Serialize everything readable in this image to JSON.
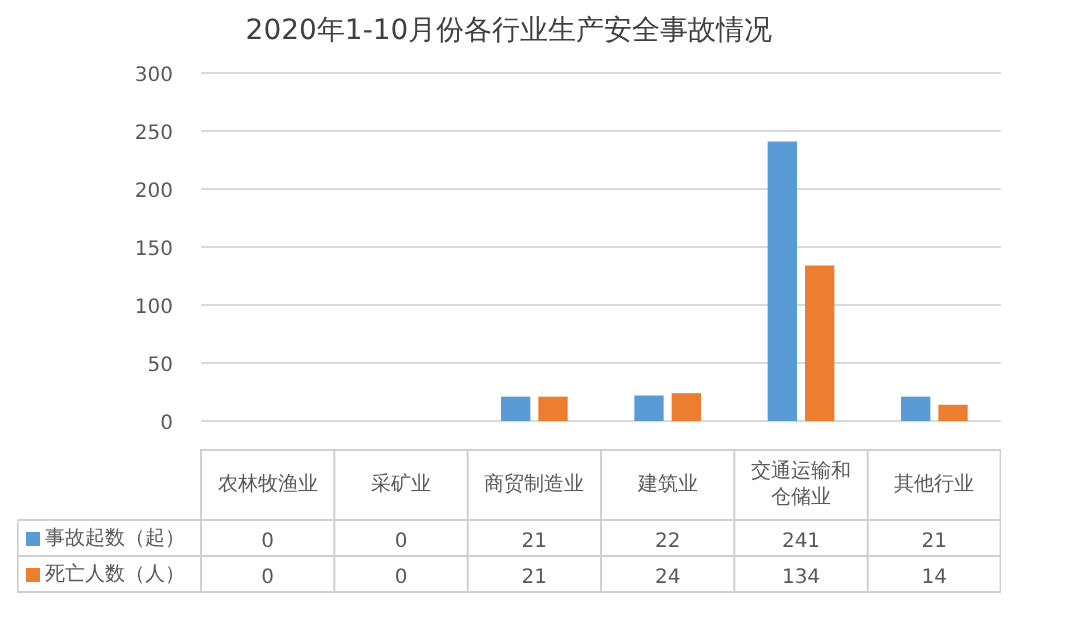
{
  "chart_data": {
    "type": "bar",
    "title": "2020年1-10月份各行业生产安全事故情况",
    "categories": [
      "农林牧渔业",
      "采矿业",
      "商贸制造业",
      "建筑业",
      "交通运输和仓储业",
      "其他行业"
    ],
    "series": [
      {
        "name": "事故起数（起）",
        "color": "#5b9bd5",
        "values": [
          0,
          0,
          21,
          22,
          241,
          21
        ]
      },
      {
        "name": "死亡人数（人）",
        "color": "#ed7d31",
        "values": [
          0,
          0,
          21,
          24,
          134,
          14
        ]
      }
    ],
    "ylim": [
      0,
      300
    ],
    "yticks": [
      0,
      50,
      100,
      150,
      200,
      250,
      300
    ],
    "grid": "y",
    "legend": "bottom",
    "data_labels": true
  }
}
